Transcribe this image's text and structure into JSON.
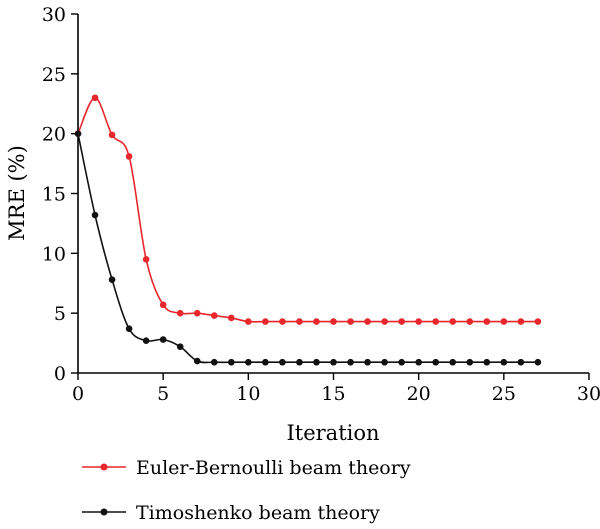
{
  "chart_data": {
    "type": "line",
    "xlabel": "Iteration",
    "ylabel": "MRE (%)",
    "xlim": [
      0,
      30
    ],
    "ylim": [
      0,
      30
    ],
    "xticks": [
      0,
      5,
      10,
      15,
      20,
      25,
      30
    ],
    "yticks": [
      0,
      5,
      10,
      15,
      20,
      25,
      30
    ],
    "grid": false,
    "legend_position": "bottom",
    "series": [
      {
        "name": "Euler-Bernoulli beam theory",
        "color": "#e8262b",
        "x": [
          0,
          1,
          2,
          3,
          4,
          5,
          6,
          7,
          8,
          9,
          10,
          11,
          12,
          13,
          14,
          15,
          16,
          17,
          18,
          19,
          20,
          21,
          22,
          23,
          24,
          25,
          26,
          27
        ],
        "y": [
          20,
          23,
          19.9,
          18.1,
          9.5,
          5.7,
          5.0,
          5.0,
          4.8,
          4.6,
          4.3,
          4.3,
          4.3,
          4.3,
          4.3,
          4.3,
          4.3,
          4.3,
          4.3,
          4.3,
          4.3,
          4.3,
          4.3,
          4.3,
          4.3,
          4.3,
          4.3,
          4.3
        ]
      },
      {
        "name": "Timoshenko beam theory",
        "color": "#111111",
        "x": [
          0,
          1,
          2,
          3,
          4,
          5,
          6,
          7,
          8,
          9,
          10,
          11,
          12,
          13,
          14,
          15,
          16,
          17,
          18,
          19,
          20,
          21,
          22,
          23,
          24,
          25,
          26,
          27
        ],
        "y": [
          20,
          13.2,
          7.8,
          3.7,
          2.7,
          2.8,
          2.2,
          1.0,
          0.9,
          0.9,
          0.9,
          0.9,
          0.9,
          0.9,
          0.9,
          0.9,
          0.9,
          0.9,
          0.9,
          0.9,
          0.9,
          0.9,
          0.9,
          0.9,
          0.9,
          0.9,
          0.9,
          0.9
        ]
      }
    ]
  }
}
